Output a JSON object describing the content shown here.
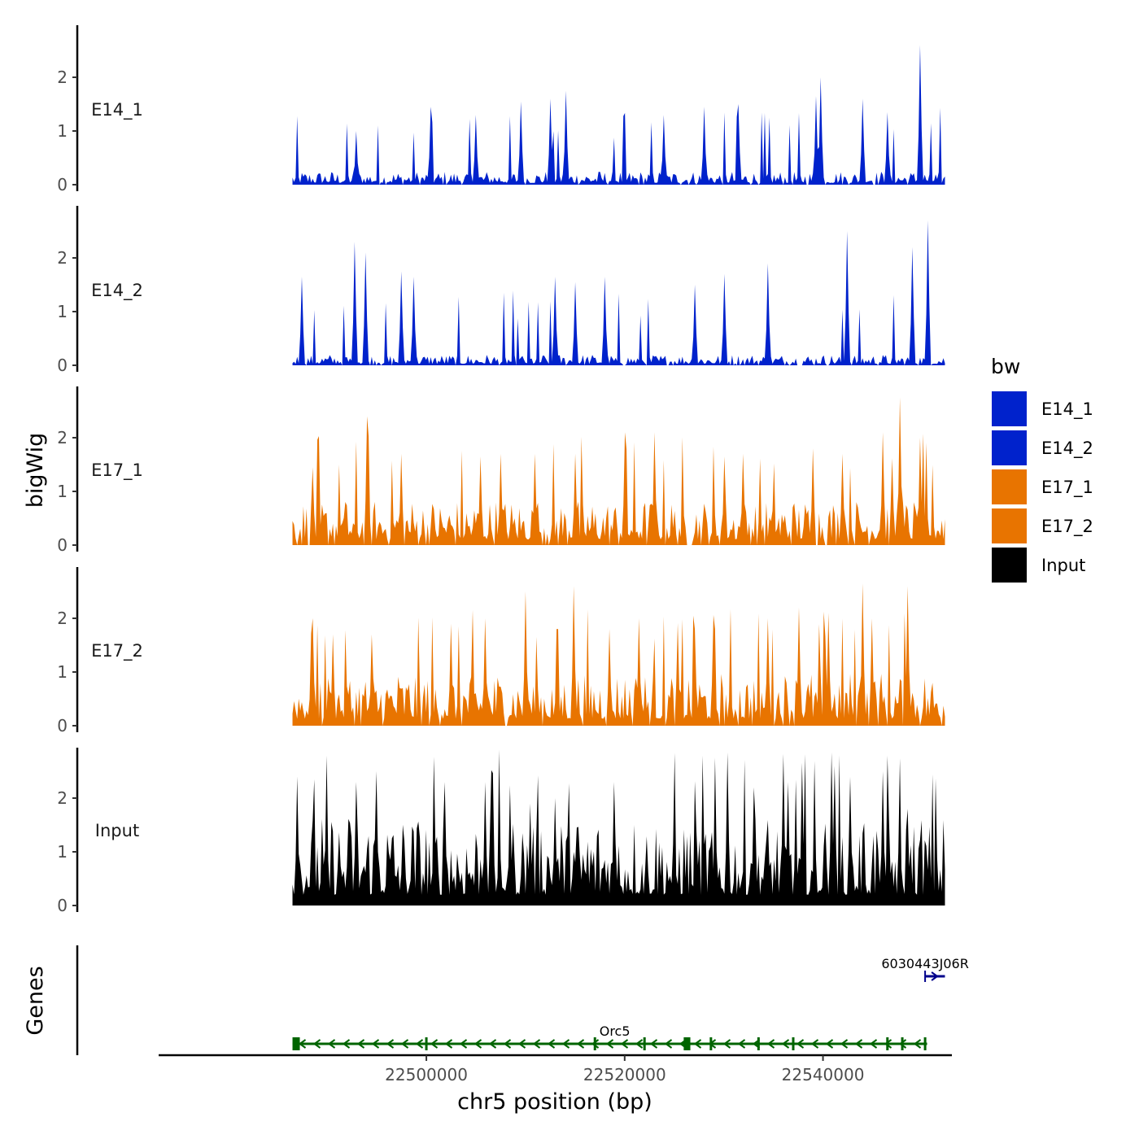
{
  "chart_data": {
    "type": "area",
    "title": "",
    "ylabel": "bigWig",
    "genes_label": "Genes",
    "xlabel": "chr5 position (bp)",
    "xlim": [
      22473000,
      22553000
    ],
    "x_ticks": [
      22500000,
      22520000,
      22540000
    ],
    "x_tick_labels": [
      "22500000",
      "22520000",
      "22540000"
    ],
    "ylim": [
      0,
      2.9
    ],
    "y_ticks": [
      0,
      1,
      2
    ],
    "y_tick_labels": [
      "0",
      "1",
      "2"
    ],
    "track_range": [
      22486500,
      22552300
    ],
    "legend": {
      "title": "bw",
      "position": "right",
      "items": [
        {
          "label": "E14_1",
          "color": "#0022CC"
        },
        {
          "label": "E14_2",
          "color": "#0022CC"
        },
        {
          "label": "E17_1",
          "color": "#E87400"
        },
        {
          "label": "E17_2",
          "color": "#E87400"
        },
        {
          "label": "Input",
          "color": "#000000"
        }
      ]
    },
    "series": [
      {
        "name": "E14_1",
        "color": "#0022CC",
        "baseline": 0.15,
        "spikes": [
          1.0,
          1.45,
          1.3,
          1.55,
          1.6,
          1.75,
          1.3,
          1.45,
          1.5,
          1.65,
          2.0,
          1.6,
          1.35,
          2.6
        ],
        "spike_positions": [
          22493000,
          22500500,
          22505000,
          22509500,
          22512500,
          22514000,
          22524000,
          22528000,
          22531500,
          22539300,
          22539800,
          22544000,
          22546500,
          22549800
        ]
      },
      {
        "name": "E14_2",
        "color": "#0022CC",
        "baseline": 0.12,
        "spikes": [
          1.65,
          2.3,
          2.1,
          1.75,
          1.65,
          1.65,
          1.55,
          1.65,
          1.5,
          1.7,
          1.9,
          2.5,
          2.2,
          2.7
        ],
        "spike_positions": [
          22487500,
          22492800,
          22493800,
          22497500,
          22498700,
          22513000,
          22515000,
          22518000,
          22527000,
          22530000,
          22534500,
          22542500,
          22549000,
          22550500
        ]
      },
      {
        "name": "E17_1",
        "color": "#E87400",
        "baseline": 0.5,
        "spikes": [
          1.45,
          2.4,
          1.7,
          1.65,
          1.7,
          1.7,
          1.7,
          2.1,
          2.1,
          1.65,
          1.7,
          1.8,
          1.7,
          2.1,
          2.75,
          2.0
        ],
        "spike_positions": [
          22488500,
          22494000,
          22497500,
          22505500,
          22507500,
          22511000,
          22515000,
          22520000,
          22523000,
          22530000,
          22532000,
          22539000,
          22542000,
          22546000,
          22547700,
          22549800
        ]
      },
      {
        "name": "E17_2",
        "color": "#E87400",
        "baseline": 0.6,
        "spikes": [
          2.0,
          1.7,
          1.7,
          1.9,
          2.0,
          2.5,
          2.6,
          1.8,
          2.0,
          1.8,
          2.0,
          2.2,
          2.1,
          2.65,
          2.0,
          2.6
        ],
        "spike_positions": [
          22488500,
          22490500,
          22494500,
          22502500,
          22506000,
          22510000,
          22514800,
          22518500,
          22521500,
          22527000,
          22534500,
          22537500,
          22540500,
          22544000,
          22545000,
          22548500
        ]
      },
      {
        "name": "Input",
        "color": "#000000",
        "baseline": 1.0,
        "spikes": [
          2.4,
          2.3,
          2.5,
          2.3,
          2.3,
          1.9,
          2.0,
          2.3,
          2.85,
          2.2,
          2.3,
          2.6,
          2.85,
          2.5,
          1.8
        ],
        "spike_positions": [
          22487000,
          22493000,
          22495000,
          22501800,
          22506000,
          22510500,
          22513000,
          22519000,
          22530400,
          22533000,
          22536500,
          22541200,
          22540800,
          22546000,
          22548500
        ]
      }
    ],
    "genes": [
      {
        "name": "Orc5",
        "start": 22486500,
        "end": 22550500,
        "strand": "-",
        "color": "#006400",
        "label_position": 22519000
      },
      {
        "name": "6030443J06R",
        "start": 22550300,
        "end": 22552300,
        "strand": "+",
        "color": "#00008B",
        "label_position": 22550300
      }
    ]
  }
}
